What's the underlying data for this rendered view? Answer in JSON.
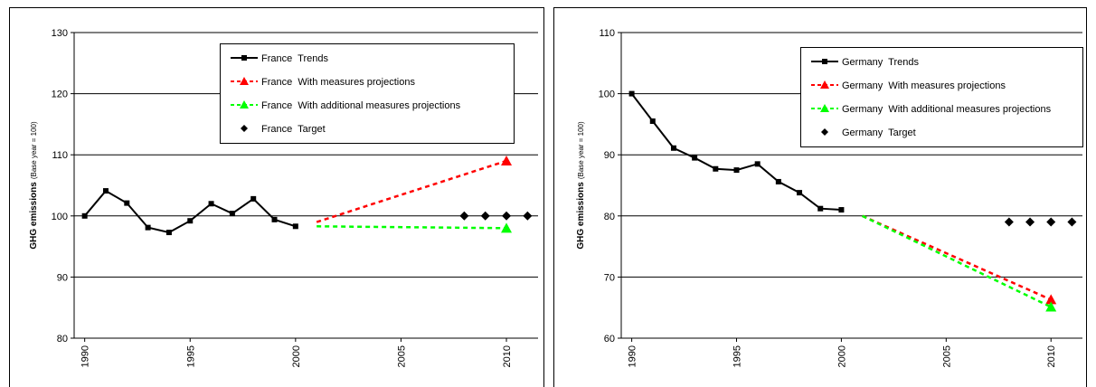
{
  "chart_data": [
    {
      "type": "line",
      "ylabel": "GHG emissions",
      "ylabel_note": "(Base year = 100)",
      "xlim": [
        1989.5,
        2011.5
      ],
      "xticks": [
        1990,
        1995,
        2000,
        2005,
        2010
      ],
      "ylim": [
        80,
        130
      ],
      "yticks": [
        80,
        90,
        100,
        110,
        120,
        130
      ],
      "grid": true,
      "legend": "top-right",
      "series": [
        {
          "name": "France  Trends",
          "color": "#000000",
          "line_style": "solid",
          "marker": "square",
          "x": [
            1990,
            1991,
            1992,
            1993,
            1994,
            1995,
            1996,
            1997,
            1998,
            1999,
            2000
          ],
          "values": [
            100,
            104.1,
            102.1,
            98.1,
            97.3,
            99.2,
            102,
            100.4,
            102.8,
            99.4,
            98.3
          ]
        },
        {
          "name": "France  With measures projections",
          "color": "#ff0000",
          "line_style": "dashed",
          "marker": "triangle",
          "marker_last_only": true,
          "x": [
            2001,
            2010
          ],
          "values": [
            99,
            109
          ]
        },
        {
          "name": "France  With additional measures projections",
          "color": "#00ff00",
          "line_style": "dashed",
          "marker": "triangle",
          "marker_last_only": true,
          "x": [
            2001,
            2007,
            2010
          ],
          "values": [
            98.3,
            98.1,
            98
          ]
        },
        {
          "name": "France  Target",
          "color": "#000000",
          "line_style": "none",
          "marker": "diamond",
          "x": [
            2008,
            2009,
            2010,
            2011
          ],
          "values": [
            100,
            100,
            100,
            100
          ]
        }
      ]
    },
    {
      "type": "line",
      "ylabel": "GHG emissions",
      "ylabel_note": "(Base year = 100)",
      "xlim": [
        1989.5,
        2011.5
      ],
      "xticks": [
        1990,
        1995,
        2000,
        2005,
        2010
      ],
      "ylim": [
        60,
        110
      ],
      "yticks": [
        60,
        70,
        80,
        90,
        100,
        110
      ],
      "grid": true,
      "legend": "top-right",
      "series": [
        {
          "name": "Germany  Trends",
          "color": "#000000",
          "line_style": "solid",
          "marker": "square",
          "x": [
            1990,
            1991,
            1992,
            1993,
            1994,
            1995,
            1996,
            1997,
            1998,
            1999,
            2000
          ],
          "values": [
            100,
            95.5,
            91.1,
            89.5,
            87.7,
            87.5,
            88.5,
            85.6,
            83.8,
            81.2,
            81
          ]
        },
        {
          "name": "Germany  With measures projections",
          "color": "#ff0000",
          "line_style": "dashed",
          "marker": "triangle",
          "marker_last_only": true,
          "x": [
            2001,
            2010
          ],
          "values": [
            80,
            66.3
          ]
        },
        {
          "name": "Germany  With additional measures projections",
          "color": "#00ff00",
          "line_style": "dashed",
          "marker": "triangle",
          "marker_last_only": true,
          "x": [
            2001,
            2010
          ],
          "values": [
            80,
            65.1
          ]
        },
        {
          "name": "Germany  Target",
          "color": "#000000",
          "line_style": "none",
          "marker": "diamond",
          "x": [
            2008,
            2009,
            2010,
            2011
          ],
          "values": [
            79,
            79,
            79,
            79
          ]
        }
      ]
    }
  ]
}
